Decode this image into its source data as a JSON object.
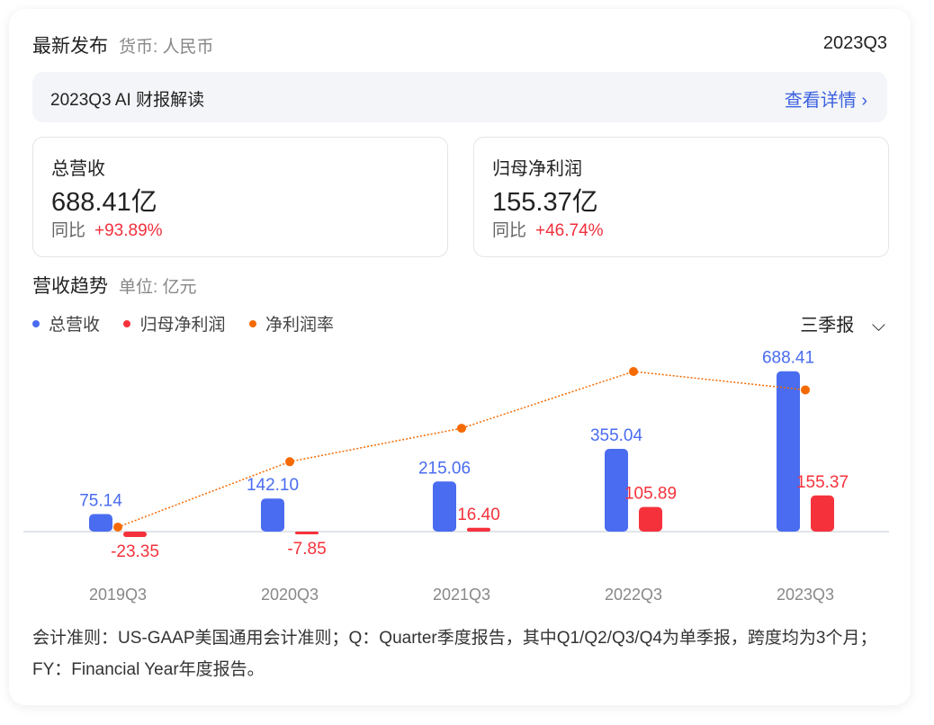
{
  "header": {
    "title": "最新发布",
    "currency": "货币: 人民币",
    "period": "2023Q3"
  },
  "ai_banner": {
    "title": "2023Q3 AI 财报解读",
    "link": "查看详情"
  },
  "kpis": [
    {
      "label": "总营收",
      "value": "688.41亿",
      "yoy_label": "同比",
      "yoy": "+93.89%"
    },
    {
      "label": "归母净利润",
      "value": "155.37亿",
      "yoy_label": "同比",
      "yoy": "+46.74%"
    }
  ],
  "trend": {
    "title": "营收趋势",
    "unit": "单位: 亿元",
    "period_select": "三季报"
  },
  "chart_data": {
    "type": "bar",
    "categories": [
      "2019Q3",
      "2020Q3",
      "2021Q3",
      "2022Q3",
      "2023Q3"
    ],
    "series": [
      {
        "name": "总营收",
        "type": "bar",
        "color": "#4a6cf0",
        "values": [
          75.14,
          142.1,
          215.06,
          355.04,
          688.41
        ]
      },
      {
        "name": "归母净利润",
        "type": "bar",
        "color": "#f5323c",
        "values": [
          -23.35,
          -7.85,
          16.4,
          105.89,
          155.37
        ]
      },
      {
        "name": "净利润率",
        "type": "line",
        "color": "#f56a00",
        "line_style": "dotted",
        "values": [
          -31.1,
          -5.5,
          7.6,
          29.8,
          22.6
        ]
      }
    ],
    "legend": "top-left",
    "grid": false
  },
  "footnote": "会计准则：US-GAAP美国通用会计准则；Q：Quarter季度报告，其中Q1/Q2/Q3/Q4为单季报，跨度均为3个月；FY：Financial Year年度报告。"
}
